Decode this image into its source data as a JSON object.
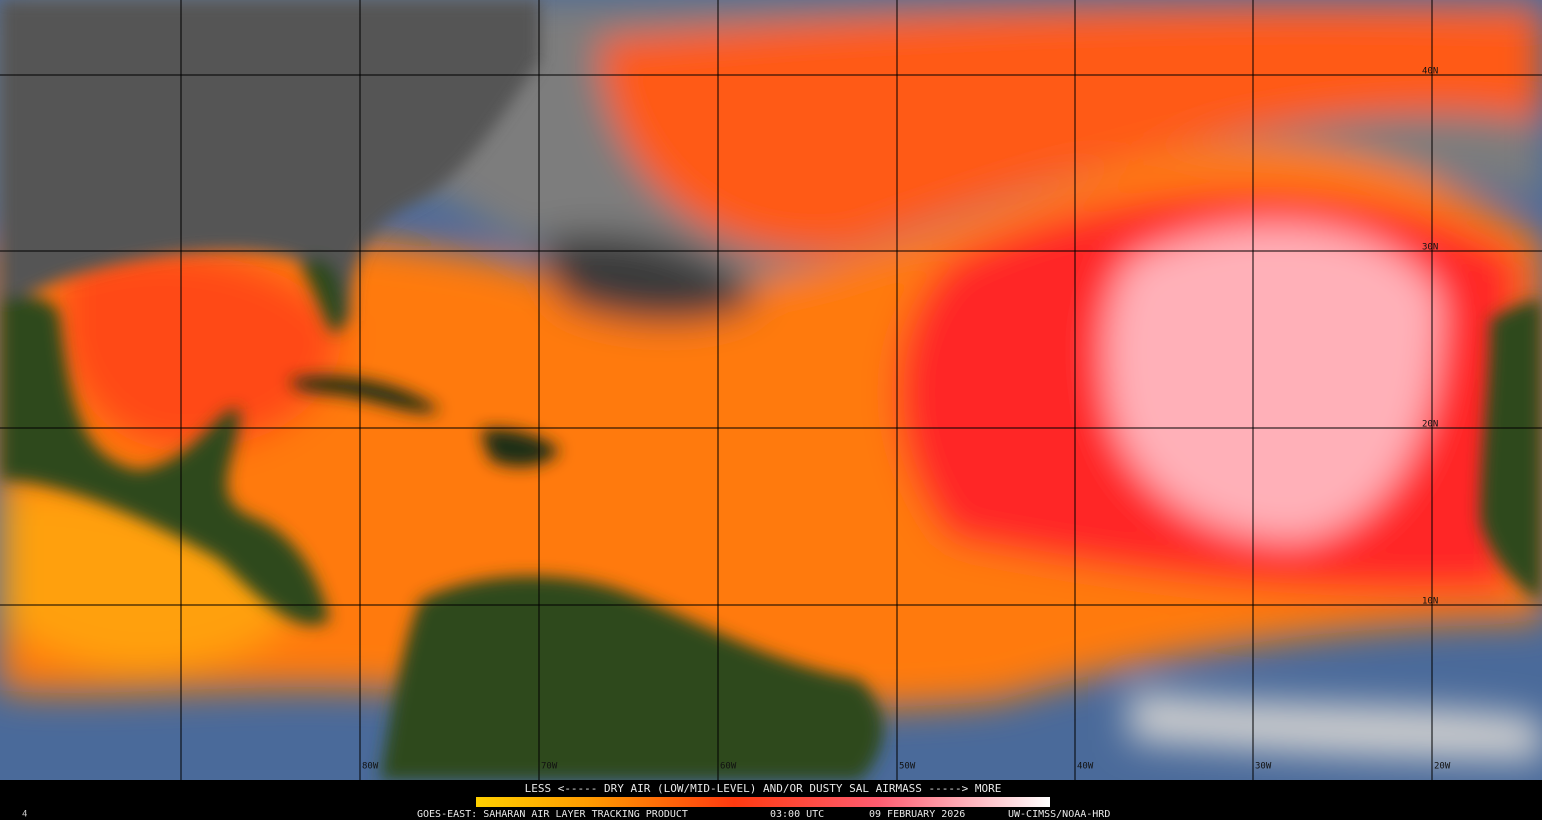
{
  "legend": {
    "text": "LESS <----- DRY AIR (LOW/MID-LEVEL) AND/OR DUSTY SAL AIRMASS -----> MORE"
  },
  "footer": {
    "corner": "4",
    "product": "GOES-EAST: SAHARAN AIR LAYER TRACKING PRODUCT",
    "time": "03:00 UTC",
    "date": "09 FEBRUARY 2026",
    "credit": "UW-CIMSS/NOAA-HRD"
  },
  "grid": {
    "longitudes": [
      "80W",
      "70W",
      "60W",
      "50W",
      "40W",
      "30W",
      "20W"
    ],
    "latitudes": [
      "40N",
      "30N",
      "20N",
      "10N"
    ]
  }
}
